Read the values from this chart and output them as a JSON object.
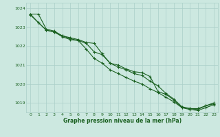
{
  "bg_color": "#cce8e0",
  "grid_color": "#aacfc8",
  "line_color": "#1a6020",
  "marker_color": "#1a6020",
  "xlabel": "Graphe pression niveau de la mer (hPa)",
  "xlabel_color": "#1a6020",
  "ytick_color": "#1a6020",
  "xtick_color": "#1a6020",
  "ylim": [
    1018.5,
    1024.3
  ],
  "xlim": [
    -0.5,
    23.5
  ],
  "yticks": [
    1019,
    1020,
    1021,
    1022,
    1023,
    1024
  ],
  "xticks": [
    0,
    1,
    2,
    3,
    4,
    5,
    6,
    7,
    8,
    9,
    10,
    11,
    12,
    13,
    14,
    15,
    16,
    17,
    18,
    19,
    20,
    21,
    22,
    23
  ],
  "series1": [
    1023.7,
    1023.7,
    1022.9,
    1022.8,
    1022.55,
    1022.45,
    1022.35,
    1022.2,
    1022.15,
    1021.6,
    1021.1,
    1021.0,
    1020.8,
    1020.65,
    1020.6,
    1020.4,
    1019.6,
    1019.45,
    1019.15,
    1018.75,
    1018.7,
    1018.7,
    1018.85,
    1018.95
  ],
  "series2": [
    1023.7,
    1023.25,
    1022.85,
    1022.75,
    1022.55,
    1022.4,
    1022.3,
    1022.15,
    1021.7,
    1021.55,
    1021.1,
    1020.9,
    1020.75,
    1020.55,
    1020.45,
    1020.15,
    1019.9,
    1019.5,
    1019.2,
    1018.8,
    1018.7,
    1018.65,
    1018.85,
    1019.0
  ],
  "series3": [
    1023.65,
    1023.25,
    1022.85,
    1022.75,
    1022.5,
    1022.35,
    1022.3,
    1021.85,
    1021.35,
    1021.1,
    1020.75,
    1020.55,
    1020.35,
    1020.15,
    1020.0,
    1019.75,
    1019.55,
    1019.3,
    1019.05,
    1018.75,
    1018.65,
    1018.6,
    1018.75,
    1018.9
  ]
}
